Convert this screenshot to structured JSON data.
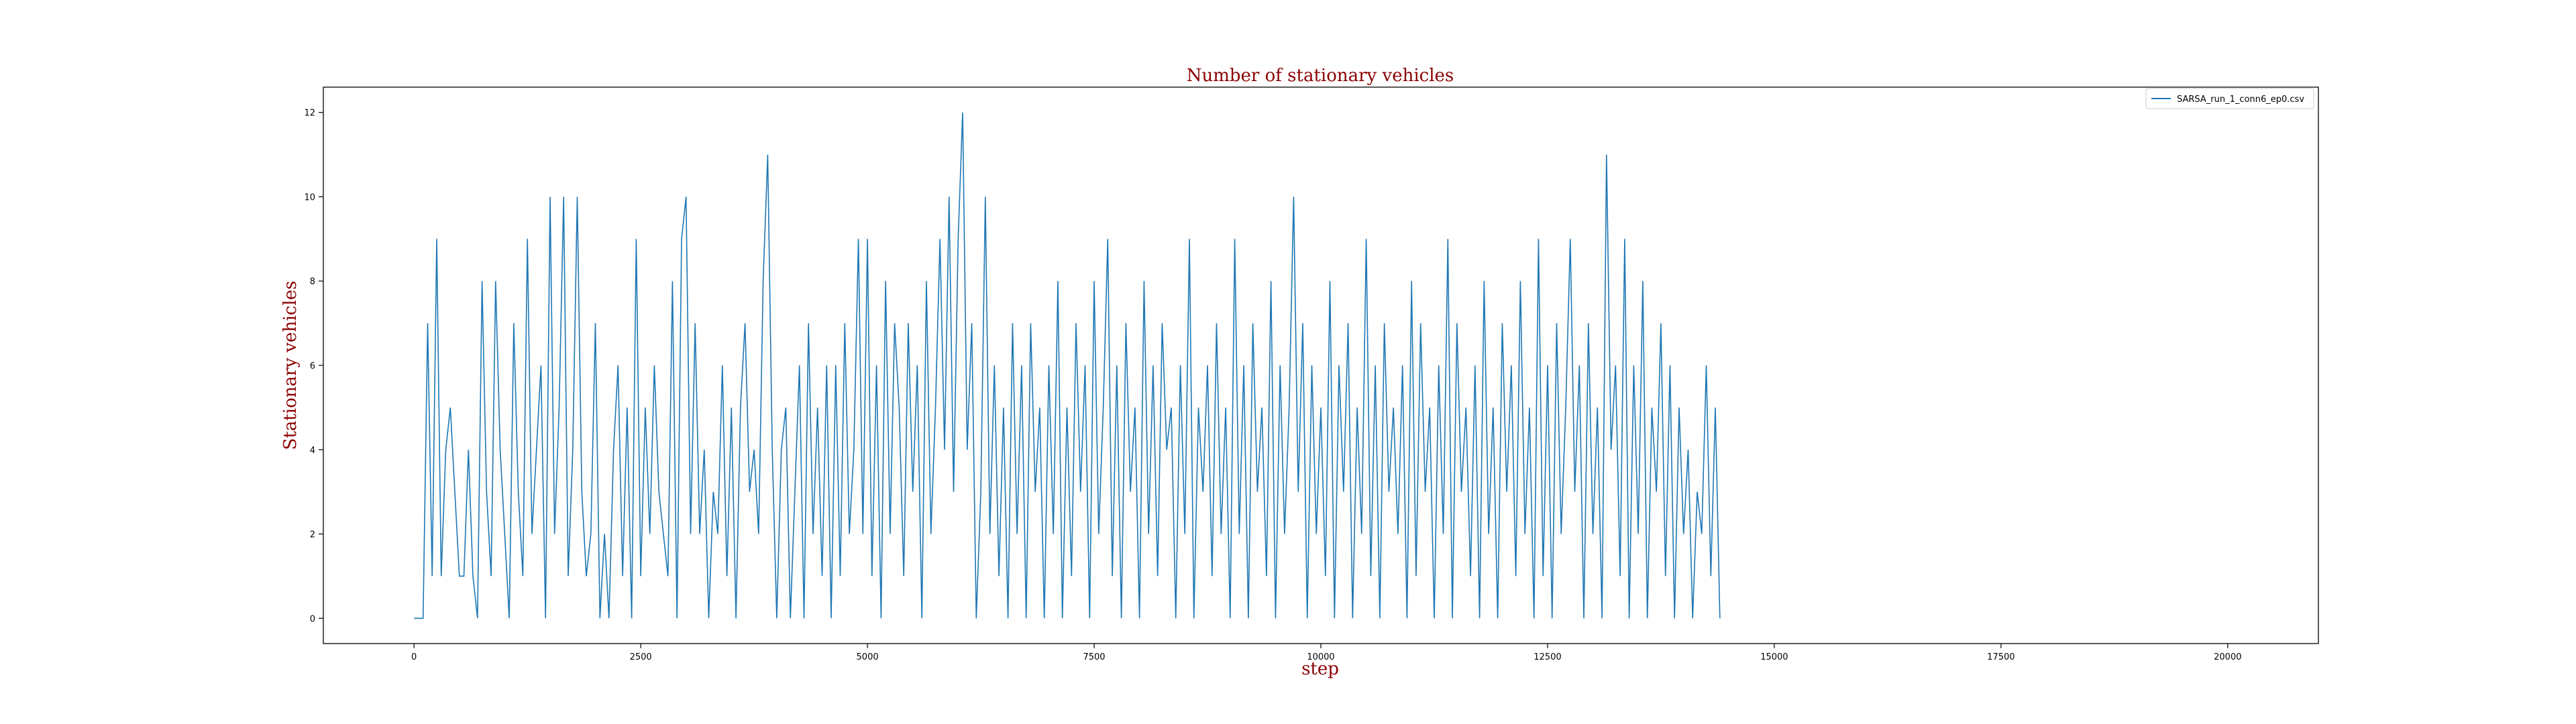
{
  "chart_data": {
    "type": "line",
    "title": "Number of stationary vehicles",
    "xlabel": "step",
    "ylabel": "Stationary vehicles",
    "xlim": [
      -1000,
      21000
    ],
    "ylim": [
      -0.6,
      12.6
    ],
    "xticks": [
      0,
      2500,
      5000,
      7500,
      10000,
      12500,
      15000,
      17500,
      20000
    ],
    "xtick_labels": [
      "0",
      "2500",
      "5000",
      "7500",
      "10000",
      "12500",
      "15000",
      "17500",
      "20000"
    ],
    "yticks": [
      0,
      2,
      4,
      6,
      8,
      10,
      12
    ],
    "ytick_labels": [
      "0",
      "2",
      "4",
      "6",
      "8",
      "10",
      "12"
    ],
    "grid": false,
    "legend_position": "top-right",
    "series": [
      {
        "name": "SARSA_run_1_conn6_ep0.csv",
        "color": "#1f77b4",
        "x_start": 0,
        "x_step": 50,
        "values": [
          0,
          0,
          0,
          7,
          1,
          9,
          1,
          4,
          5,
          3,
          1,
          1,
          4,
          1,
          0,
          8,
          3,
          1,
          8,
          4,
          2,
          0,
          7,
          3,
          1,
          9,
          2,
          4,
          6,
          0,
          10,
          2,
          5,
          10,
          1,
          4,
          10,
          3,
          1,
          2,
          7,
          0,
          2,
          0,
          4,
          6,
          1,
          5,
          0,
          9,
          1,
          5,
          2,
          6,
          3,
          2,
          1,
          8,
          0,
          9,
          10,
          2,
          7,
          2,
          4,
          0,
          3,
          2,
          6,
          1,
          5,
          0,
          5,
          7,
          3,
          4,
          2,
          8,
          11,
          4,
          0,
          4,
          5,
          0,
          3,
          6,
          0,
          7,
          2,
          5,
          1,
          6,
          0,
          6,
          1,
          7,
          2,
          4,
          9,
          2,
          9,
          1,
          6,
          0,
          8,
          2,
          7,
          5,
          1,
          7,
          3,
          6,
          0,
          8,
          2,
          5,
          9,
          4,
          10,
          3,
          9,
          12,
          4,
          7,
          0,
          3,
          10,
          2,
          6,
          1,
          5,
          0,
          7,
          2,
          6,
          0,
          7,
          3,
          5,
          0,
          6,
          2,
          8,
          0,
          5,
          1,
          7,
          3,
          6,
          0,
          8,
          2,
          5,
          9,
          1,
          6,
          0,
          7,
          3,
          5,
          0,
          8,
          2,
          6,
          1,
          7,
          4,
          5,
          0,
          6,
          2,
          9,
          0,
          5,
          3,
          6,
          1,
          7,
          2,
          5,
          0,
          9,
          2,
          6,
          0,
          7,
          3,
          5,
          1,
          8,
          0,
          6,
          2,
          5,
          10,
          3,
          7,
          0,
          6,
          2,
          5,
          1,
          8,
          0,
          6,
          3,
          7,
          0,
          5,
          2,
          9,
          1,
          6,
          0,
          7,
          3,
          5,
          2,
          6,
          0,
          8,
          1,
          7,
          3,
          5,
          0,
          6,
          2,
          9,
          0,
          7,
          3,
          5,
          1,
          6,
          0,
          8,
          2,
          5,
          0,
          7,
          3,
          6,
          1,
          8,
          2,
          5,
          0,
          9,
          1,
          6,
          0,
          7,
          2,
          5,
          9,
          3,
          6,
          0,
          7,
          2,
          5,
          0,
          11,
          4,
          6,
          1,
          9,
          0,
          6,
          2,
          8,
          0,
          5,
          3,
          7,
          1,
          6,
          0,
          5,
          2,
          4,
          0,
          3,
          2,
          6,
          1,
          5,
          0
        ]
      }
    ]
  }
}
